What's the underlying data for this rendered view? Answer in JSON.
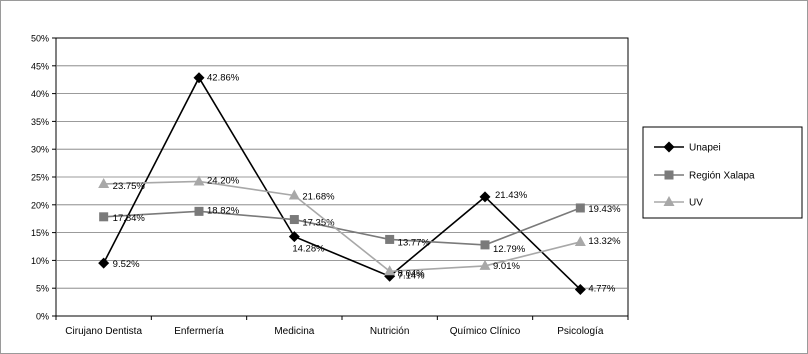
{
  "chart_data": {
    "type": "line",
    "categories": [
      "Cirujano Dentista",
      "Enfermería",
      "Medicina",
      "Nutrición",
      "Químico Clínico",
      "Psicología"
    ],
    "ylim": [
      0,
      50
    ],
    "ytick_labels": [
      "0%",
      "5%",
      "10%",
      "15%",
      "20%",
      "25%",
      "30%",
      "35%",
      "40%",
      "45%",
      "50%"
    ],
    "grid": true,
    "legend_position": "right",
    "series": [
      {
        "name": "Unapei",
        "values": [
          9.52,
          42.86,
          14.28,
          7.14,
          21.43,
          4.77
        ],
        "labels": [
          "9.52%",
          "42.86%",
          "14.28%",
          "7.14%",
          "21.43%",
          "4.77%"
        ],
        "color": "#000000",
        "marker": "diamond"
      },
      {
        "name": "Región Xalapa",
        "values": [
          17.84,
          18.82,
          17.35,
          13.77,
          12.79,
          19.43
        ],
        "labels": [
          "17.84%",
          "18.82%",
          "17.35%",
          "13.77%",
          "12.79%",
          "19.43%"
        ],
        "color": "#7a7a7a",
        "marker": "square"
      },
      {
        "name": "UV",
        "values": [
          23.75,
          24.2,
          21.68,
          8.04,
          9.01,
          13.32
        ],
        "labels": [
          "23.75%",
          "24.20%",
          "21.68%",
          "8.04%",
          "9.01%",
          "13.32%"
        ],
        "color": "#a8a8a8",
        "marker": "triangle"
      }
    ]
  }
}
